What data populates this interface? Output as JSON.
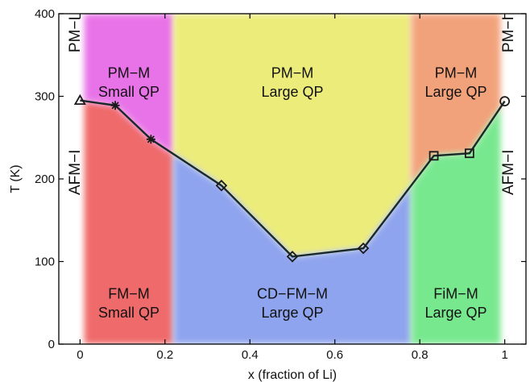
{
  "chart_data": {
    "type": "line",
    "xlabel": "x (fraction of Li)",
    "ylabel": "T (K)",
    "xlim": [
      -0.05,
      1.05
    ],
    "ylim": [
      0,
      400
    ],
    "x_ticks": [
      0,
      0.2,
      0.4,
      0.6,
      0.8,
      1
    ],
    "x_tick_labels": [
      "0",
      "0.2",
      "0.4",
      "0.6",
      "0.8",
      "1"
    ],
    "y_ticks": [
      0,
      100,
      200,
      300,
      400
    ],
    "y_tick_labels": [
      "0",
      "100",
      "200",
      "300",
      "400"
    ],
    "grid": false,
    "series": [
      {
        "points": [
          {
            "x": 0.0,
            "y": 295,
            "marker": "triangle"
          },
          {
            "x": 0.083,
            "y": 289,
            "marker": "star"
          },
          {
            "x": 0.167,
            "y": 248,
            "marker": "star"
          },
          {
            "x": 0.333,
            "y": 192,
            "marker": "diamond"
          },
          {
            "x": 0.5,
            "y": 106,
            "marker": "diamond"
          },
          {
            "x": 0.667,
            "y": 116,
            "marker": "diamond"
          },
          {
            "x": 0.833,
            "y": 228,
            "marker": "square"
          },
          {
            "x": 0.917,
            "y": 231,
            "marker": "square"
          },
          {
            "x": 1.0,
            "y": 294,
            "marker": "circle"
          }
        ],
        "color": "#1a2a2a"
      }
    ],
    "regions": [
      {
        "x0": 0.01,
        "x1": 0.22,
        "y0": 0,
        "y1": "boundary",
        "color": "#ef6a6a"
      },
      {
        "x0": 0.01,
        "x1": 0.22,
        "y0": "boundary",
        "y1": 400,
        "color": "#e873e8"
      },
      {
        "x0": 0.22,
        "x1": 0.78,
        "y0": "boundary",
        "y1": 400,
        "color": "#ecec7a"
      },
      {
        "x0": 0.22,
        "x1": 0.78,
        "y0": 0,
        "y1": "boundary",
        "color": "#8fa4ee"
      },
      {
        "x0": 0.78,
        "x1": 0.99,
        "y0": "boundary",
        "y1": 400,
        "color": "#f2a27a"
      },
      {
        "x0": 0.78,
        "x1": 0.99,
        "y0": 0,
        "y1": "boundary",
        "color": "#78e88f"
      }
    ],
    "annotations": [
      {
        "text": "PM−M",
        "x": 0.115,
        "y": 327
      },
      {
        "text": "Small QP",
        "x": 0.115,
        "y": 304
      },
      {
        "text": "PM−M",
        "x": 0.5,
        "y": 327
      },
      {
        "text": "Large QP",
        "x": 0.5,
        "y": 304
      },
      {
        "text": "PM−M",
        "x": 0.885,
        "y": 327
      },
      {
        "text": "Large QP",
        "x": 0.885,
        "y": 304
      },
      {
        "text": "FM−M",
        "x": 0.115,
        "y": 60
      },
      {
        "text": "Small QP",
        "x": 0.115,
        "y": 37
      },
      {
        "text": "CD−FM−M",
        "x": 0.5,
        "y": 60
      },
      {
        "text": "Large QP",
        "x": 0.5,
        "y": 37
      },
      {
        "text": "FiM−M",
        "x": 0.885,
        "y": 60
      },
      {
        "text": "Large QP",
        "x": 0.885,
        "y": 37
      },
      {
        "text": "PM−I",
        "x": -0.01,
        "y": 375,
        "rotation": -90
      },
      {
        "text": "AFM−I",
        "x": -0.01,
        "y": 208,
        "rotation": -90
      },
      {
        "text": "PM−I",
        "x": 1.01,
        "y": 375,
        "rotation": -90
      },
      {
        "text": "AFM−I",
        "x": 1.01,
        "y": 208,
        "rotation": -90
      }
    ]
  }
}
